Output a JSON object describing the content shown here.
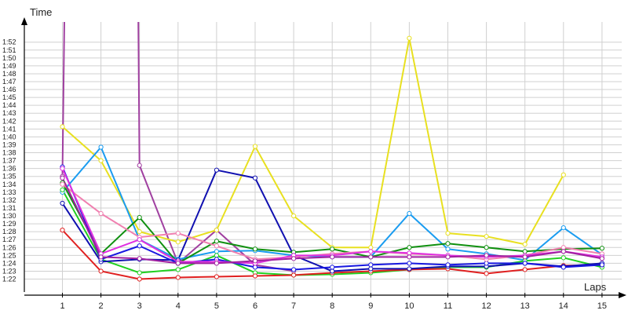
{
  "chart_data": {
    "type": "line",
    "ylabel": "Time",
    "xlabel": "Laps",
    "x": [
      1,
      2,
      3,
      4,
      5,
      6,
      7,
      8,
      9,
      10,
      11,
      12,
      13,
      14,
      15
    ],
    "xlim": [
      0,
      15.6
    ],
    "ylim": [
      80.5,
      156
    ],
    "grid": true,
    "yticks": [
      {
        "label": "1:22",
        "value": 82
      },
      {
        "label": "1:23",
        "value": 83
      },
      {
        "label": "1:24",
        "value": 84
      },
      {
        "label": "1:25",
        "value": 85
      },
      {
        "label": "1:26",
        "value": 86
      },
      {
        "label": "1:27",
        "value": 87
      },
      {
        "label": "1:28",
        "value": 88
      },
      {
        "label": "1:29",
        "value": 89
      },
      {
        "label": "1:30",
        "value": 90
      },
      {
        "label": "1:31",
        "value": 91
      },
      {
        "label": "1:32",
        "value": 92
      },
      {
        "label": "1:33",
        "value": 93
      },
      {
        "label": "1:34",
        "value": 94
      },
      {
        "label": "1:35",
        "value": 95
      },
      {
        "label": "1:36",
        "value": 96
      },
      {
        "label": "1:37",
        "value": 97
      },
      {
        "label": "1:38",
        "value": 98
      },
      {
        "label": "1:39",
        "value": 99
      },
      {
        "label": "1:40",
        "value": 100
      },
      {
        "label": "1:41",
        "value": 101
      },
      {
        "label": "1:42",
        "value": 102
      },
      {
        "label": "1:43",
        "value": 103
      },
      {
        "label": "1:44",
        "value": 104
      },
      {
        "label": "1:45",
        "value": 105
      },
      {
        "label": "1:46",
        "value": 106
      },
      {
        "label": "1:47",
        "value": 107
      },
      {
        "label": "1:48",
        "value": 108
      },
      {
        "label": "1:49",
        "value": 109
      },
      {
        "label": "1:50",
        "value": 110
      },
      {
        "label": "1:51",
        "value": 111
      },
      {
        "label": "1:52",
        "value": 112
      }
    ],
    "xticks": [
      "1",
      "2",
      "3",
      "4",
      "5",
      "6",
      "7",
      "8",
      "9",
      "10",
      "11",
      "12",
      "13",
      "14",
      "15"
    ],
    "series": [
      {
        "color": "#e8e020",
        "values": [
          101.3,
          97,
          88,
          86.7,
          88.2,
          98.8,
          90,
          86,
          86,
          112.5,
          87.8,
          87.4,
          86.4,
          95.2,
          null
        ]
      },
      {
        "color": "#1a9cf0",
        "values": [
          93,
          98.7,
          87,
          84.5,
          85.5,
          85.6,
          85,
          84.8,
          84.8,
          90.3,
          85.8,
          85.2,
          84.4,
          88.5,
          85.1
        ]
      },
      {
        "color": "#109010",
        "values": [
          94.2,
          85.2,
          89.8,
          84,
          86.8,
          85.8,
          85.4,
          85.8,
          84.8,
          86,
          86.5,
          86,
          85.5,
          85.8,
          85.9
        ]
      },
      {
        "color": "#20d020",
        "values": [
          93.3,
          84.5,
          82.8,
          83.2,
          85,
          82.8,
          82.5,
          82.6,
          82.8,
          83.2,
          83.5,
          83.5,
          84.3,
          84.7,
          83.5
        ]
      },
      {
        "color": "#e02020",
        "values": [
          88.2,
          83,
          82,
          82.2,
          82.3,
          82.4,
          82.5,
          82.8,
          83,
          83.2,
          83.3,
          82.7,
          83.2,
          83.7,
          83.8
        ]
      },
      {
        "color": "#1010b0",
        "values": [
          91.6,
          84.2,
          84.5,
          84.4,
          95.8,
          94.8,
          85,
          83,
          83.3,
          83.3,
          83.6,
          83.6,
          84,
          83.6,
          84
        ]
      },
      {
        "color": "#1818e0",
        "values": [
          96.2,
          84.5,
          86.2,
          84,
          84.5,
          83.5,
          83.2,
          83.5,
          83.8,
          84,
          83.8,
          84,
          84,
          83.5,
          83.8
        ]
      },
      {
        "color": "#f080b0",
        "values": [
          94,
          90.3,
          87.3,
          87.8,
          86.2,
          84.5,
          84.8,
          85.2,
          85.5,
          85.2,
          85,
          84.5,
          85,
          86,
          85.2
        ]
      },
      {
        "color": "#e030e0",
        "values": [
          96,
          85.2,
          87,
          84.2,
          84.2,
          84,
          85,
          85,
          85.5,
          85.3,
          85,
          84.8,
          85,
          85.5,
          84.8
        ]
      },
      {
        "color": "#a020a0",
        "values": [
          94.8,
          84.8,
          84.6,
          84,
          84,
          84.3,
          84.6,
          84.8,
          84.8,
          84.8,
          84.8,
          85,
          84.8,
          85.5,
          84.6
        ]
      }
    ],
    "spikes": [
      {
        "color": "#a040a0",
        "points": [
          [
            1,
            95
          ],
          [
            1.05,
            156
          ]
        ]
      },
      {
        "color": "#a040a0",
        "points": [
          [
            2.97,
            156
          ],
          [
            3,
            96.4
          ],
          [
            4,
            84
          ],
          [
            5,
            88.2
          ],
          [
            6,
            83.8
          ],
          [
            7,
            83
          ]
        ]
      }
    ]
  }
}
